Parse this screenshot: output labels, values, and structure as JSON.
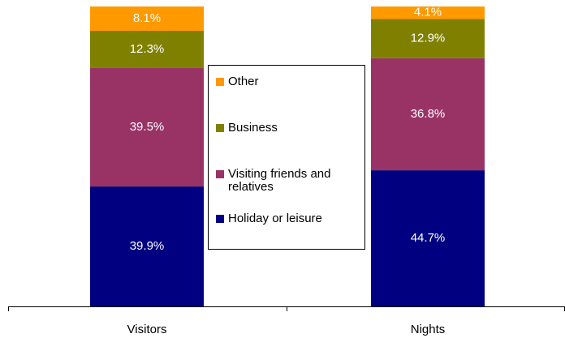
{
  "chart_data": {
    "type": "stacked-bar",
    "categories": [
      "Visitors",
      "Nights"
    ],
    "series": [
      {
        "name": "Holiday or leisure",
        "color": "#000080",
        "values": [
          39.9,
          44.7
        ],
        "value_labels": [
          "39.9%",
          "44.7%"
        ]
      },
      {
        "name": "Visiting friends and relatives",
        "color": "#993366",
        "values": [
          39.5,
          36.8
        ],
        "value_labels": [
          "39.5%",
          "36.8%"
        ]
      },
      {
        "name": "Business",
        "color": "#808000",
        "values": [
          12.3,
          12.9
        ],
        "value_labels": [
          "12.3%",
          "12.9%"
        ]
      },
      {
        "name": "Other",
        "color": "#ff9900",
        "values": [
          8.1,
          4.1
        ],
        "value_labels": [
          "8.1%",
          "4.1%"
        ]
      }
    ]
  }
}
